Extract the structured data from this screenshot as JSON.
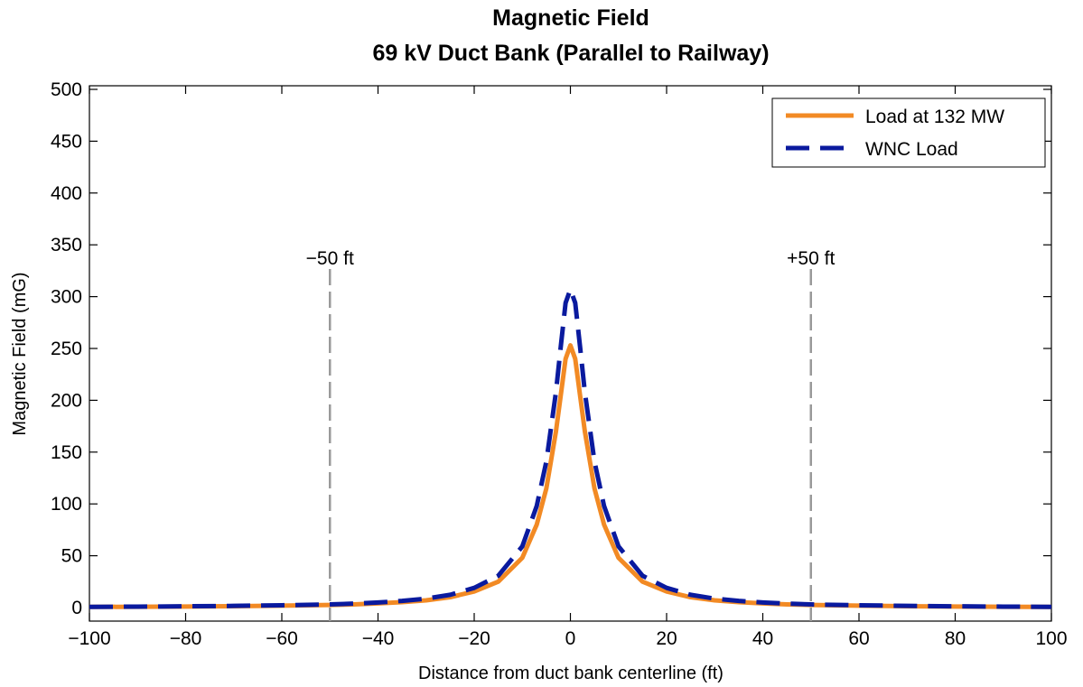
{
  "chart_data": {
    "type": "line",
    "title": "Magnetic Field",
    "subtitle": "69 kV Duct Bank (Parallel to Railway)",
    "xlabel": "Distance from duct bank centerline (ft)",
    "ylabel": "Magnetic Field (mG)",
    "xlim": [
      -100,
      100
    ],
    "ylim": [
      0,
      500
    ],
    "xticks": [
      -100,
      -80,
      -60,
      -40,
      -20,
      0,
      20,
      40,
      60,
      80,
      100
    ],
    "yticks": [
      0,
      50,
      100,
      150,
      200,
      250,
      300,
      350,
      400,
      450,
      500
    ],
    "grid": false,
    "legend_position": "top-right",
    "x": [
      -100,
      -90,
      -80,
      -70,
      -60,
      -50,
      -45,
      -40,
      -35,
      -30,
      -25,
      -20,
      -15,
      -10,
      -7,
      -5,
      -3,
      -2,
      -1,
      0,
      1,
      2,
      3,
      5,
      7,
      10,
      15,
      20,
      25,
      30,
      35,
      40,
      45,
      50,
      60,
      70,
      80,
      90,
      100
    ],
    "series": [
      {
        "name": "Load at 132 MW",
        "color": "#F28A24",
        "style": "solid",
        "values": [
          0.6,
          0.8,
          1.0,
          1.3,
          1.8,
          2.5,
          3.1,
          4.0,
          5.2,
          7.0,
          10.0,
          15.5,
          25.0,
          48.0,
          80.0,
          115.0,
          170.0,
          205.0,
          240.0,
          253.0,
          240.0,
          205.0,
          170.0,
          115.0,
          80.0,
          48.0,
          25.0,
          15.5,
          10.0,
          7.0,
          5.2,
          4.0,
          3.1,
          2.5,
          1.8,
          1.3,
          1.0,
          0.8,
          0.6
        ]
      },
      {
        "name": "WNC Load",
        "color": "#0A1A9E",
        "style": "dashed",
        "values": [
          0.7,
          0.9,
          1.2,
          1.6,
          2.2,
          3.0,
          3.8,
          4.9,
          6.4,
          8.6,
          12.3,
          19.0,
          30.7,
          59.0,
          98.0,
          141.0,
          208.0,
          252.0,
          294.0,
          307.0,
          294.0,
          252.0,
          208.0,
          141.0,
          98.0,
          59.0,
          30.7,
          19.0,
          12.3,
          8.6,
          6.4,
          4.9,
          3.8,
          3.0,
          2.2,
          1.6,
          1.2,
          0.9,
          0.7
        ]
      }
    ],
    "reference_lines": [
      {
        "x": -50,
        "label": "−50 ft"
      },
      {
        "x": 50,
        "label": "+50 ft"
      }
    ],
    "reference_line_color": "#9A9A9A"
  }
}
